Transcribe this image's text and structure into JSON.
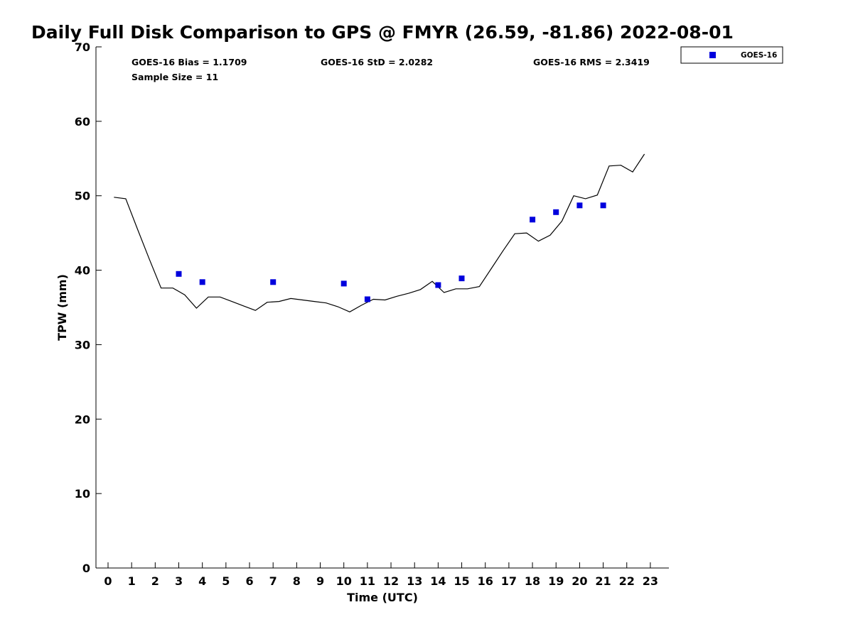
{
  "chart_data": {
    "type": "scatter",
    "title": "Daily Full Disk Comparison to GPS @ FMYR (26.59, -81.86) 2022-08-01",
    "xlabel": "Time (UTC)",
    "ylabel": "TPW (mm)",
    "xlim": [
      -0.5,
      23.7
    ],
    "ylim": [
      0,
      70
    ],
    "xticks": [
      "0",
      "1",
      "2",
      "3",
      "4",
      "5",
      "6",
      "7",
      "8",
      "9",
      "10",
      "11",
      "12",
      "13",
      "14",
      "15",
      "16",
      "17",
      "18",
      "19",
      "20",
      "21",
      "22",
      "23"
    ],
    "yticks": [
      "0",
      "10",
      "20",
      "30",
      "40",
      "50",
      "60",
      "70"
    ],
    "grid": false,
    "legend_position": "top-right",
    "stats": {
      "bias": "GOES-16 Bias = 1.1709",
      "std": "GOES-16 StD = 2.0282",
      "rms": "GOES-16 RMS = 2.3419",
      "sample": "Sample Size = 11"
    },
    "series": [
      {
        "name": "GOES-16",
        "kind": "scatter",
        "color": "#0000dd",
        "x": [
          3,
          4,
          7,
          10,
          11,
          14,
          15,
          18,
          19,
          20,
          21
        ],
        "y": [
          39.5,
          38.4,
          38.4,
          38.2,
          36.1,
          38.0,
          38.9,
          46.8,
          47.8,
          48.7,
          48.7
        ]
      },
      {
        "kind": "line",
        "color": "#000000",
        "x": [
          0.25,
          0.75,
          1.25,
          1.75,
          2.25,
          2.75,
          3.25,
          3.75,
          4.25,
          4.75,
          5.25,
          5.75,
          6.25,
          6.75,
          7.25,
          7.75,
          8.25,
          8.75,
          9.25,
          9.75,
          10.25,
          10.75,
          11.25,
          11.75,
          12.25,
          12.75,
          13.25,
          13.75,
          14.25,
          14.75,
          15.25,
          15.75,
          16.25,
          16.75,
          17.25,
          17.75,
          18.25,
          18.75,
          19.25,
          19.75,
          20.25,
          20.75,
          21.25,
          21.75,
          22.25,
          22.75
        ],
        "y": [
          49.8,
          49.6,
          45.5,
          41.5,
          37.6,
          37.6,
          36.7,
          34.9,
          36.4,
          36.4,
          35.8,
          35.2,
          34.6,
          35.7,
          35.8,
          36.2,
          36.0,
          35.8,
          35.6,
          35.1,
          34.4,
          35.3,
          36.1,
          36.0,
          36.5,
          36.9,
          37.4,
          38.5,
          37.0,
          37.5,
          37.5,
          37.8,
          40.2,
          42.6,
          44.9,
          45.0,
          43.9,
          44.7,
          46.6,
          50.0,
          49.6,
          50.1,
          54.0,
          54.1,
          53.2,
          55.6
        ]
      }
    ]
  }
}
